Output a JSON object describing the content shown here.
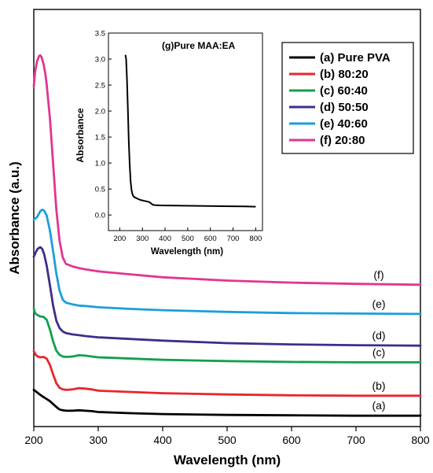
{
  "chart_data": [
    {
      "type": "line",
      "xlabel": "Wavelength (nm)",
      "ylabel": "Absorbance (a.u.)",
      "xlim": [
        200,
        800
      ],
      "xticks": [
        200,
        300,
        400,
        500,
        600,
        700,
        800
      ],
      "y_tick_labels_shown": false,
      "ylim": [
        0,
        1
      ],
      "legend_position": "top-right",
      "series": [
        {
          "name": "(a) Pure PVA",
          "label": "(a)",
          "color": "#000000",
          "x": [
            200,
            205,
            210,
            215,
            220,
            225,
            230,
            235,
            240,
            245,
            250,
            260,
            270,
            280,
            290,
            300,
            350,
            400,
            500,
            600,
            700,
            800
          ],
          "y": [
            0.088,
            0.082,
            0.076,
            0.071,
            0.066,
            0.061,
            0.054,
            0.047,
            0.041,
            0.039,
            0.038,
            0.038,
            0.039,
            0.038,
            0.037,
            0.035,
            0.032,
            0.03,
            0.028,
            0.027,
            0.026,
            0.026
          ]
        },
        {
          "name": "(b) 80:20",
          "label": "(b)",
          "color": "#e8262b",
          "x": [
            200,
            203,
            206,
            210,
            215,
            220,
            225,
            230,
            235,
            240,
            245,
            250,
            260,
            270,
            280,
            290,
            300,
            400,
            500,
            600,
            700,
            800
          ],
          "y": [
            0.181,
            0.172,
            0.168,
            0.166,
            0.167,
            0.163,
            0.148,
            0.125,
            0.104,
            0.093,
            0.089,
            0.088,
            0.089,
            0.092,
            0.091,
            0.089,
            0.086,
            0.08,
            0.077,
            0.075,
            0.074,
            0.074
          ]
        },
        {
          "name": "(c) 60:40",
          "label": "(c)",
          "color": "#11a04c",
          "x": [
            200,
            202,
            205,
            210,
            215,
            220,
            225,
            230,
            235,
            240,
            245,
            250,
            260,
            270,
            280,
            290,
            300,
            400,
            500,
            600,
            700,
            800
          ],
          "y": [
            0.284,
            0.272,
            0.268,
            0.264,
            0.263,
            0.256,
            0.233,
            0.204,
            0.182,
            0.172,
            0.168,
            0.167,
            0.168,
            0.171,
            0.17,
            0.168,
            0.166,
            0.16,
            0.157,
            0.155,
            0.154,
            0.154
          ]
        },
        {
          "name": "(d) 50:50",
          "label": "(d)",
          "color": "#3f2c8c",
          "x": [
            200,
            203,
            206,
            210,
            213,
            216,
            220,
            225,
            230,
            235,
            240,
            245,
            250,
            260,
            270,
            280,
            300,
            400,
            500,
            600,
            700,
            800
          ],
          "y": [
            0.407,
            0.418,
            0.426,
            0.43,
            0.426,
            0.414,
            0.386,
            0.339,
            0.29,
            0.254,
            0.236,
            0.228,
            0.224,
            0.221,
            0.219,
            0.217,
            0.214,
            0.206,
            0.2,
            0.197,
            0.195,
            0.194
          ]
        },
        {
          "name": "(e) 40:60",
          "label": "(e)",
          "color": "#1a9fd9",
          "x": [
            200,
            205,
            210,
            213,
            216,
            220,
            225,
            230,
            235,
            240,
            245,
            250,
            260,
            270,
            280,
            300,
            350,
            400,
            500,
            600,
            700,
            800
          ],
          "y": [
            0.496,
            0.502,
            0.516,
            0.52,
            0.518,
            0.506,
            0.47,
            0.42,
            0.367,
            0.326,
            0.304,
            0.297,
            0.293,
            0.29,
            0.289,
            0.286,
            0.282,
            0.279,
            0.275,
            0.272,
            0.271,
            0.27
          ]
        },
        {
          "name": "(f) 20:80",
          "label": "(f)",
          "color": "#e2358f",
          "x": [
            200,
            202,
            205,
            208,
            210,
            212,
            215,
            218,
            220,
            225,
            230,
            235,
            240,
            245,
            250,
            260,
            270,
            280,
            300,
            350,
            400,
            500,
            600,
            700,
            800
          ],
          "y": [
            0.815,
            0.85,
            0.875,
            0.888,
            0.89,
            0.886,
            0.87,
            0.845,
            0.82,
            0.74,
            0.63,
            0.52,
            0.445,
            0.405,
            0.39,
            0.384,
            0.38,
            0.377,
            0.372,
            0.365,
            0.358,
            0.35,
            0.345,
            0.342,
            0.34
          ]
        }
      ]
    },
    {
      "type": "line",
      "title": "(g)Pure MAA:EA",
      "xlabel": "Wavelength (nm)",
      "ylabel": "Absorbance",
      "xlim": [
        150,
        830
      ],
      "ylim": [
        -0.3,
        3.5
      ],
      "xticks": [
        200,
        300,
        400,
        500,
        600,
        700,
        800
      ],
      "xtick_labels": [
        "200",
        "300",
        "400",
        "500",
        "600",
        "700",
        "800"
      ],
      "yticks": [
        0.0,
        0.5,
        1.0,
        1.5,
        2.0,
        2.5,
        3.0,
        3.5
      ],
      "ytick_labels": [
        "0.0",
        "0.5",
        "1.0",
        "1.5",
        "2.0",
        "2.5",
        "3.0",
        "3.5"
      ],
      "series": [
        {
          "color": "#000000",
          "x": [
            225,
            228,
            232,
            236,
            240,
            244,
            248,
            252,
            256,
            260,
            266,
            275,
            290,
            310,
            330,
            345,
            355,
            380,
            450,
            550,
            650,
            750,
            800
          ],
          "y": [
            3.08,
            3.0,
            2.6,
            2.0,
            1.4,
            0.95,
            0.65,
            0.48,
            0.4,
            0.36,
            0.34,
            0.32,
            0.29,
            0.27,
            0.25,
            0.2,
            0.19,
            0.185,
            0.18,
            0.175,
            0.17,
            0.165,
            0.16
          ]
        }
      ]
    }
  ]
}
